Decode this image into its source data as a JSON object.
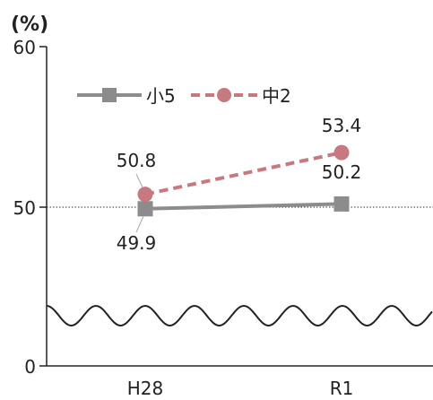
{
  "chart_data": {
    "type": "line",
    "ylabel": "(%)",
    "categories": [
      "H28",
      "R1"
    ],
    "yticks": [
      "0",
      "50",
      "60"
    ],
    "ylim": [
      0,
      60
    ],
    "axis_break": true,
    "reference_line": {
      "value": 50,
      "style": "dotted"
    },
    "legend_position": "top-left",
    "series": [
      {
        "name": "小5",
        "values": [
          49.9,
          50.2
        ],
        "labels": [
          "49.9",
          "50.2"
        ],
        "color": "#8c8c8c",
        "line": "solid",
        "marker": "square"
      },
      {
        "name": "中2",
        "values": [
          50.8,
          53.4
        ],
        "labels": [
          "50.8",
          "53.4"
        ],
        "color": "#c8787f",
        "line": "dashed",
        "marker": "circle"
      }
    ]
  }
}
